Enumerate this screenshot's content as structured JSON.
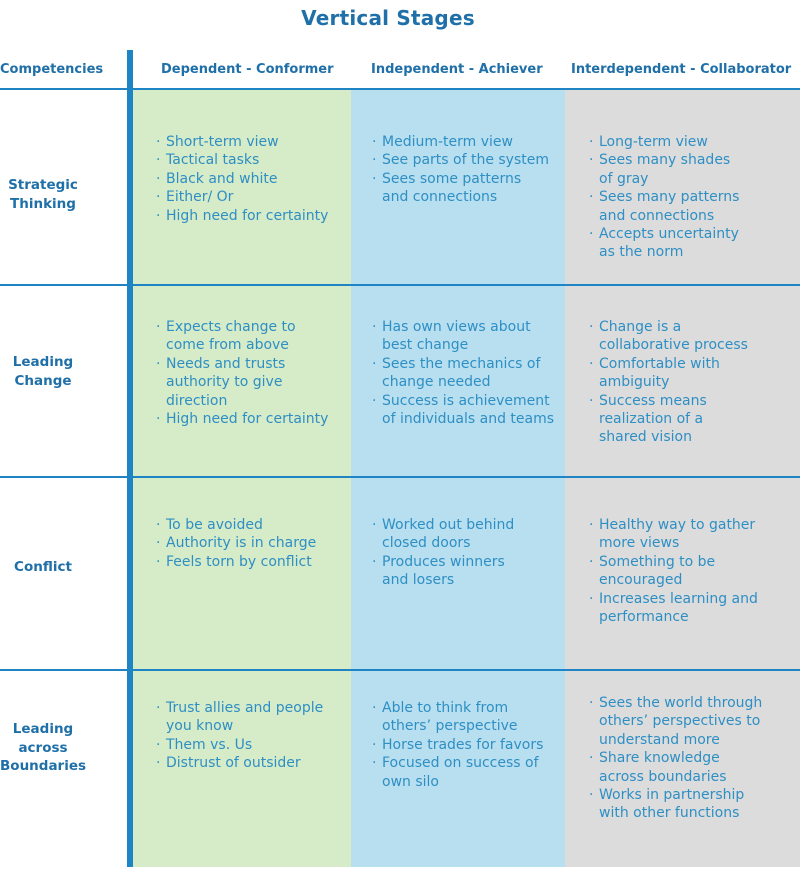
{
  "title": "Vertical Stages",
  "headers": {
    "competencies": "Competencies",
    "col1": "Dependent - Conformer",
    "col2": "Independent - Achiever",
    "col3": "Interdependent - Collaborator"
  },
  "rows": [
    {
      "label": "Strategic\nThinking",
      "col1": [
        "Short-term view",
        "Tactical tasks",
        "Black and white",
        "Either/ Or",
        "High need for certainty"
      ],
      "col2": [
        "Medium-term view",
        "See parts of the system",
        "Sees some patterns\nand connections"
      ],
      "col3": [
        "Long-term view",
        "Sees many shades\nof gray",
        "Sees many patterns\nand connections",
        "Accepts uncertainty\nas the norm"
      ]
    },
    {
      "label": "Leading\nChange",
      "col1": [
        "Expects change to\ncome from above",
        "Needs and trusts\nauthority to give\ndirection",
        "High need for certainty"
      ],
      "col2": [
        "Has own views about\nbest change",
        "Sees the mechanics of\nchange needed",
        "Success is achievement\nof individuals and teams"
      ],
      "col3": [
        "Change is a\ncollaborative process",
        "Comfortable with\nambiguity",
        "Success means\nrealization of a\nshared vision"
      ]
    },
    {
      "label": "Conflict",
      "col1": [
        "To be avoided",
        "Authority is in charge",
        "Feels torn by conflict"
      ],
      "col2": [
        "Worked out behind\nclosed doors",
        "Produces winners\nand losers"
      ],
      "col3": [
        "Healthy way to gather\nmore views",
        "Something to be\nencouraged",
        "Increases learning and\nperformance"
      ]
    },
    {
      "label": "Leading\nacross\nBoundaries",
      "col1": [
        "Trust allies and people\nyou know",
        "Them vs. Us",
        "Distrust of outsider"
      ],
      "col2": [
        "Able to think from\nothers’ perspective",
        "Horse trades for favors",
        "Focused on success of\nown silo"
      ],
      "col3": [
        "Sees the world through\nothers’ perspectives to\nunderstand more",
        "Share knowledge\nacross boundaries",
        "Works in partnership\nwith other functions"
      ]
    }
  ]
}
